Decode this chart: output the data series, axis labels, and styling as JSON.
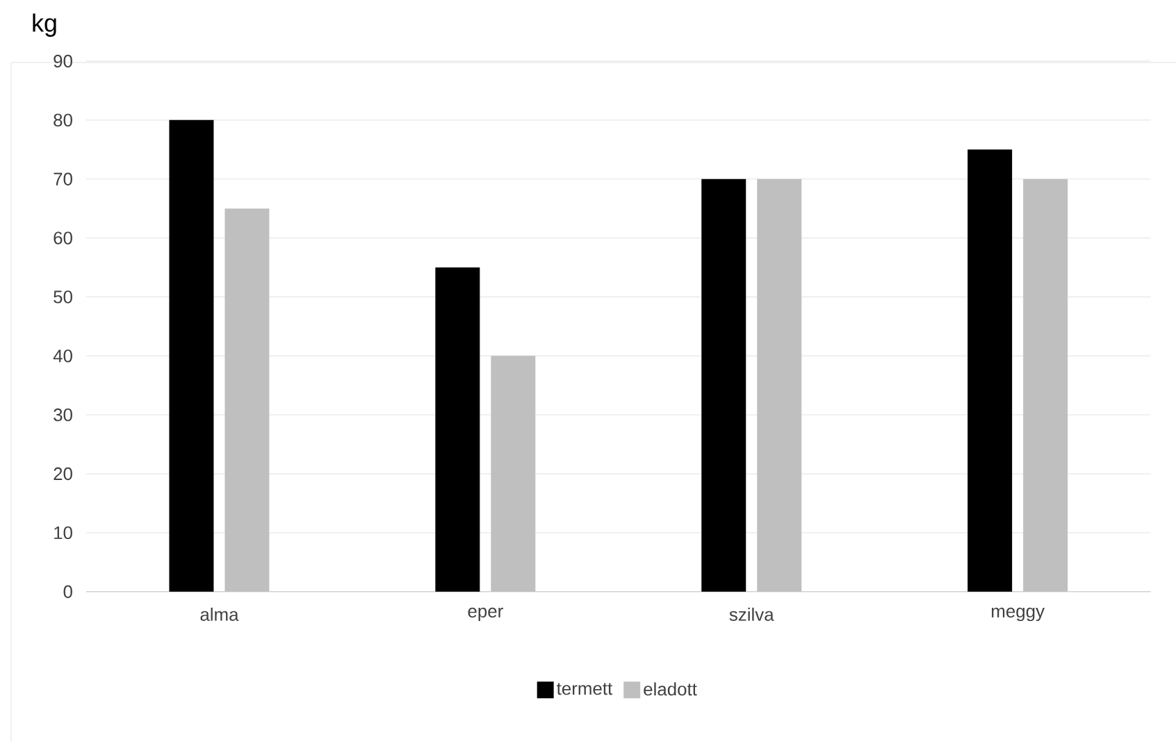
{
  "chart_data": {
    "type": "bar",
    "ylabel": "kg",
    "categories": [
      "alma",
      "eper",
      "szilva",
      "meggy"
    ],
    "series": [
      {
        "name": "termett",
        "color": "#000000",
        "values": [
          80,
          55,
          70,
          75
        ]
      },
      {
        "name": "eladott",
        "color": "#bfbfbf",
        "values": [
          65,
          40,
          70,
          70
        ]
      }
    ],
    "ylim": [
      0,
      90
    ],
    "yticks": [
      0,
      10,
      20,
      30,
      40,
      50,
      60,
      70,
      80,
      90
    ],
    "grid": "y",
    "legend": "bottom"
  }
}
